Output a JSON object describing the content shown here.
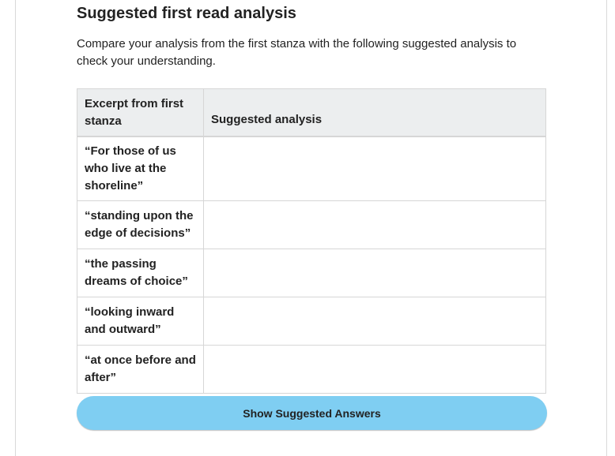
{
  "section": {
    "title": "Suggested first read analysis",
    "intro": "Compare your analysis from the first stanza with the following suggested analysis to check your understanding."
  },
  "table": {
    "headers": [
      "Excerpt from first stanza",
      "Suggested analysis"
    ],
    "rows": [
      {
        "excerpt": "“For those of us who live at the shoreline”",
        "analysis": ""
      },
      {
        "excerpt": "“standing upon the edge of decisions”",
        "analysis": ""
      },
      {
        "excerpt": "“the passing dreams of choice”",
        "analysis": ""
      },
      {
        "excerpt": "“looking inward and outward”",
        "analysis": ""
      },
      {
        "excerpt": "“at once before and after”",
        "analysis": ""
      }
    ]
  },
  "button": {
    "label": "Show Suggested Answers"
  },
  "colors": {
    "button_bg": "#7fcef2",
    "header_bg": "#eceeef",
    "border": "#d6d6d6"
  }
}
